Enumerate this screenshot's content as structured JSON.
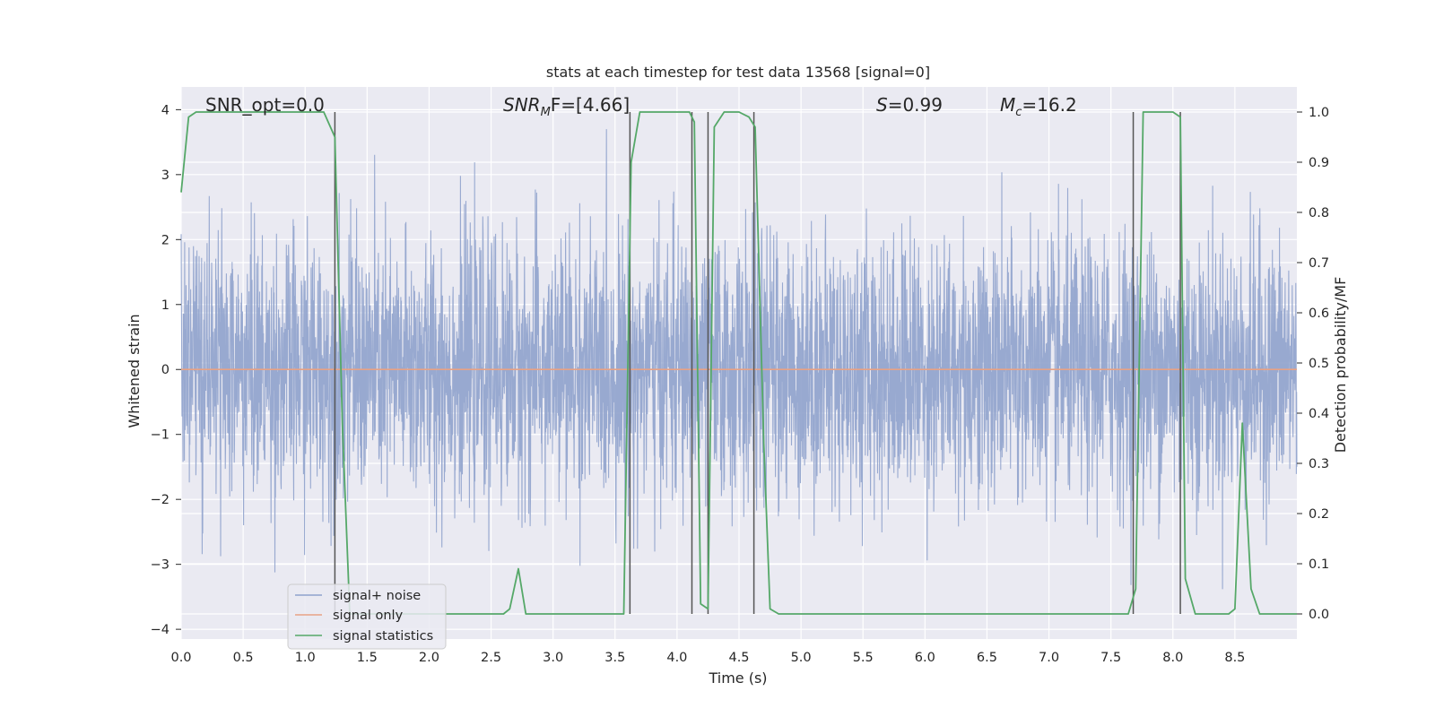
{
  "chart_data": {
    "type": "line",
    "title": "stats at each timestep for test data 13568 [signal=0]",
    "xlabel": "Time (s)",
    "ylabel_left": "Whitened strain",
    "ylabel_right": "Detection probability/MF",
    "xlim": [
      0.0,
      9.0
    ],
    "ylim_left": [
      -4.15,
      4.35
    ],
    "ylim_right": [
      -0.05,
      1.05
    ],
    "x_ticks": [
      0.0,
      0.5,
      1.0,
      1.5,
      2.0,
      2.5,
      3.0,
      3.5,
      4.0,
      4.5,
      5.0,
      5.5,
      6.0,
      6.5,
      7.0,
      7.5,
      8.0,
      8.5
    ],
    "x_tick_labels": [
      "0.0",
      "0.5",
      "1.0",
      "1.5",
      "2.0",
      "2.5",
      "3.0",
      "3.5",
      "4.0",
      "4.5",
      "5.0",
      "5.5",
      "6.0",
      "6.5",
      "7.0",
      "7.5",
      "8.0",
      "8.5"
    ],
    "y_ticks_left": [
      4,
      3,
      2,
      1,
      0,
      -1,
      -2,
      -3,
      -4
    ],
    "y_tick_labels_left": [
      "4",
      "3",
      "2",
      "1",
      "0",
      "−1",
      "−2",
      "−3",
      "−4"
    ],
    "y_ticks_right": [
      1.0,
      0.9,
      0.8,
      0.7,
      0.6,
      0.5,
      0.4,
      0.3,
      0.2,
      0.1,
      0.0
    ],
    "y_tick_labels_right": [
      "1.0",
      "0.9",
      "0.8",
      "0.7",
      "0.6",
      "0.5",
      "0.4",
      "0.3",
      "0.2",
      "0.1",
      "0.0"
    ],
    "grid": true,
    "legend_position": "lower-left",
    "annotations": {
      "snr_opt": "SNR_opt=0.0",
      "snr_mf_main": "SNR",
      "snr_mf_sub": "M",
      "snr_mf_rest": "F=[4.66]",
      "s_main": "S",
      "s_rest": "=0.99",
      "mc_main": "M",
      "mc_sub": "c",
      "mc_rest": "=16.2"
    },
    "series": [
      {
        "name": "signal+ noise",
        "axis": "left",
        "color": "#8fa2cc",
        "description_samples": 4096,
        "typical_amplitude": 1.0
      },
      {
        "name": "signal only",
        "axis": "left",
        "color": "#e8a285",
        "x": [
          0.0,
          9.0
        ],
        "y": [
          0.0,
          0.0
        ]
      },
      {
        "name": "signal statistics",
        "axis": "right",
        "color": "#55a868",
        "x": [
          0.0,
          0.06,
          0.12,
          0.5,
          0.9,
          1.05,
          1.15,
          1.24,
          1.3,
          1.36,
          1.42,
          1.5,
          2.0,
          2.5,
          2.6,
          2.65,
          2.72,
          2.78,
          3.0,
          3.5,
          3.57,
          3.63,
          3.7,
          3.8,
          4.0,
          4.1,
          4.14,
          4.19,
          4.25,
          4.3,
          4.38,
          4.5,
          4.58,
          4.63,
          4.7,
          4.75,
          4.82,
          5.0,
          6.0,
          7.0,
          7.5,
          7.64,
          7.7,
          7.76,
          8.0,
          8.06,
          8.1,
          8.18,
          8.3,
          8.45,
          8.5,
          8.56,
          8.63,
          8.7,
          9.0
        ],
        "y": [
          0.84,
          0.99,
          1.0,
          1.0,
          1.0,
          1.0,
          1.0,
          0.95,
          0.38,
          0.0,
          0.0,
          0.0,
          0.0,
          0.0,
          0.0,
          0.01,
          0.09,
          0.0,
          0.0,
          0.0,
          0.0,
          0.9,
          1.0,
          1.0,
          1.0,
          1.0,
          0.98,
          0.02,
          0.01,
          0.97,
          1.0,
          1.0,
          0.99,
          0.97,
          0.34,
          0.01,
          0.0,
          0.0,
          0.0,
          0.0,
          0.0,
          0.0,
          0.05,
          1.0,
          1.0,
          0.99,
          0.07,
          0.0,
          0.0,
          0.0,
          0.01,
          0.38,
          0.05,
          0.0,
          0.0
        ]
      }
    ],
    "vertical_markers": {
      "color": "#555555",
      "x": [
        1.24,
        3.62,
        4.12,
        4.25,
        4.62,
        7.68,
        8.06
      ],
      "top": 1.0,
      "bottom": 0.0
    }
  }
}
